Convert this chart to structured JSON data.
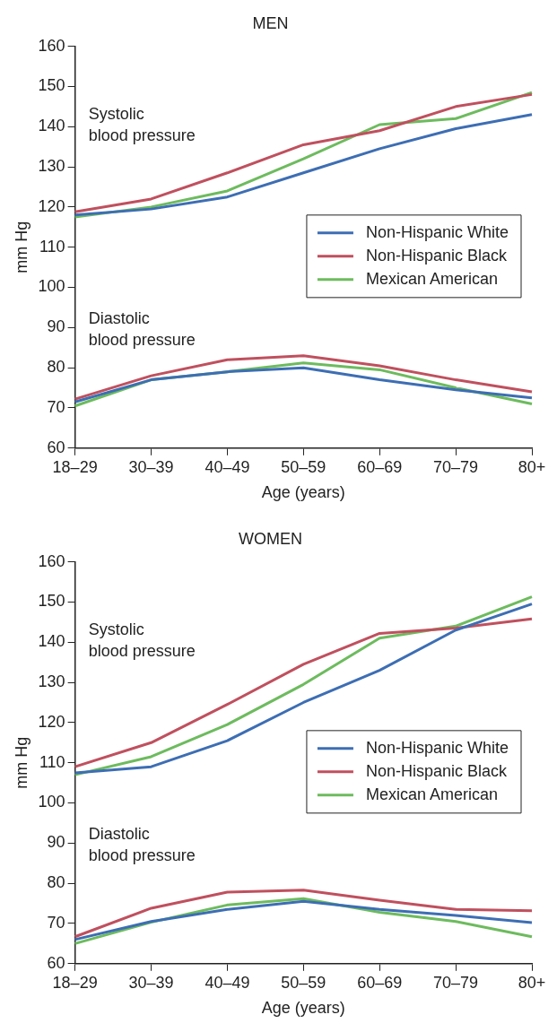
{
  "chart_data": [
    {
      "type": "line",
      "title": "MEN",
      "xlabel": "Age (years)",
      "ylabel": "mm Hg",
      "categories": [
        "18–29",
        "30–39",
        "40–49",
        "50–59",
        "60–69",
        "70–79",
        "80+"
      ],
      "ylim": [
        60,
        160
      ],
      "yticks": [
        60,
        70,
        80,
        90,
        100,
        110,
        120,
        130,
        140,
        150,
        160
      ],
      "grid": false,
      "legend": "right",
      "marker": "none",
      "line_style": "solid",
      "annotations": [
        "Systolic\nblood pressure",
        "Diastolic\nblood pressure"
      ],
      "series": [
        {
          "name": "Non-Hispanic White",
          "color": "#3d6eb4",
          "values": [
            118,
            119.5,
            122.5,
            128.5,
            134.5,
            139.5,
            143
          ]
        },
        {
          "name": "Non-Hispanic Black",
          "color": "#c0505e",
          "values": [
            118.8,
            122,
            128.5,
            135.5,
            139,
            145,
            148
          ]
        },
        {
          "name": "Mexican American",
          "color": "#6dbb5e",
          "values": [
            117.5,
            120,
            124,
            132,
            140.5,
            142,
            148.5
          ]
        },
        {
          "color": "#3d6eb4",
          "values": [
            71.5,
            77,
            79,
            80,
            77,
            74.5,
            72.5
          ]
        },
        {
          "color": "#c0505e",
          "values": [
            72.2,
            78,
            82,
            83,
            80.5,
            77,
            74
          ]
        },
        {
          "color": "#6dbb5e",
          "values": [
            70.5,
            77,
            79,
            81.2,
            79.5,
            75,
            71
          ]
        }
      ]
    },
    {
      "type": "line",
      "title": "WOMEN",
      "xlabel": "Age (years)",
      "ylabel": "mm Hg",
      "categories": [
        "18–29",
        "30–39",
        "40–49",
        "50–59",
        "60–69",
        "70–79",
        "80+"
      ],
      "ylim": [
        60,
        160
      ],
      "yticks": [
        60,
        70,
        80,
        90,
        100,
        110,
        120,
        130,
        140,
        150,
        160
      ],
      "grid": false,
      "legend": "right",
      "marker": "none",
      "line_style": "solid",
      "annotations": [
        "Systolic\nblood pressure",
        "Diastolic\nblood pressure"
      ],
      "series": [
        {
          "name": "Non-Hispanic White",
          "color": "#3d6eb4",
          "values": [
            107.5,
            109,
            115.5,
            125,
            133,
            143,
            149.5
          ]
        },
        {
          "name": "Non-Hispanic Black",
          "color": "#c0505e",
          "values": [
            109,
            115,
            124.5,
            134.5,
            142.2,
            143.5,
            145.8
          ]
        },
        {
          "name": "Mexican American",
          "color": "#6dbb5e",
          "values": [
            107,
            111.5,
            119.5,
            129.5,
            141,
            144,
            151.3
          ]
        },
        {
          "color": "#3d6eb4",
          "values": [
            66,
            70.5,
            73.5,
            75.5,
            73.5,
            72,
            70.2
          ]
        },
        {
          "color": "#c0505e",
          "values": [
            66.7,
            73.8,
            77.8,
            78.3,
            75.8,
            73.5,
            73.2
          ]
        },
        {
          "color": "#6dbb5e",
          "values": [
            65,
            70.3,
            74.6,
            76.2,
            72.8,
            70.5,
            66.7
          ]
        }
      ]
    }
  ]
}
